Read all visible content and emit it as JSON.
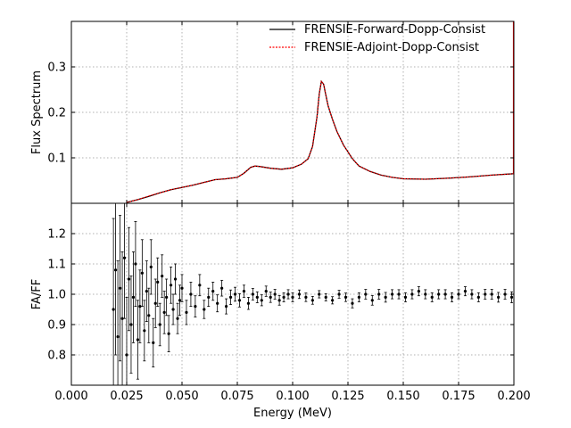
{
  "chart_data": [
    {
      "panel": "top",
      "type": "line",
      "title": "",
      "xlabel": "",
      "ylabel": "Flux Spectrum",
      "xlim": [
        0.0,
        0.2
      ],
      "ylim": [
        0.0,
        0.4
      ],
      "yticks": [
        0.1,
        0.2,
        0.3
      ],
      "ytick_labels": [
        "0.1",
        "0.2",
        "0.3"
      ],
      "grid": true,
      "legend_position": "top-right",
      "series": [
        {
          "name": "FRENSIE-Forward-Dopp-Consist",
          "color": "#000000",
          "style": "solid",
          "x": [
            0.025,
            0.03,
            0.035,
            0.04,
            0.045,
            0.05,
            0.055,
            0.06,
            0.065,
            0.07,
            0.075,
            0.078,
            0.081,
            0.083,
            0.085,
            0.09,
            0.095,
            0.1,
            0.104,
            0.107,
            0.109,
            0.111,
            0.112,
            0.113,
            0.114,
            0.115,
            0.116,
            0.118,
            0.12,
            0.123,
            0.127,
            0.13,
            0.135,
            0.14,
            0.145,
            0.15,
            0.16,
            0.17,
            0.18,
            0.19,
            0.2
          ],
          "y": [
            0.002,
            0.008,
            0.015,
            0.023,
            0.03,
            0.035,
            0.04,
            0.046,
            0.052,
            0.054,
            0.057,
            0.066,
            0.079,
            0.082,
            0.081,
            0.077,
            0.075,
            0.078,
            0.086,
            0.098,
            0.125,
            0.19,
            0.24,
            0.268,
            0.262,
            0.238,
            0.215,
            0.185,
            0.158,
            0.128,
            0.098,
            0.082,
            0.07,
            0.062,
            0.057,
            0.054,
            0.053,
            0.055,
            0.058,
            0.062,
            0.065
          ]
        },
        {
          "name": "FRENSIE-Adjoint-Dopp-Consist",
          "color": "#ff0000",
          "style": "dotted",
          "x": [
            0.025,
            0.03,
            0.035,
            0.04,
            0.045,
            0.05,
            0.055,
            0.06,
            0.065,
            0.07,
            0.075,
            0.078,
            0.081,
            0.083,
            0.085,
            0.09,
            0.095,
            0.1,
            0.104,
            0.107,
            0.109,
            0.111,
            0.112,
            0.113,
            0.114,
            0.115,
            0.116,
            0.118,
            0.12,
            0.123,
            0.127,
            0.13,
            0.135,
            0.14,
            0.145,
            0.15,
            0.16,
            0.17,
            0.18,
            0.19,
            0.2
          ],
          "y": [
            0.002,
            0.008,
            0.016,
            0.023,
            0.03,
            0.035,
            0.04,
            0.046,
            0.052,
            0.054,
            0.057,
            0.066,
            0.079,
            0.082,
            0.081,
            0.077,
            0.075,
            0.078,
            0.086,
            0.098,
            0.125,
            0.19,
            0.24,
            0.268,
            0.262,
            0.238,
            0.215,
            0.185,
            0.158,
            0.128,
            0.098,
            0.082,
            0.07,
            0.062,
            0.057,
            0.054,
            0.053,
            0.055,
            0.058,
            0.062,
            0.065
          ]
        }
      ]
    },
    {
      "panel": "bottom",
      "type": "scatter",
      "title": "",
      "xlabel": "Energy (MeV)",
      "ylabel": "FA/FF",
      "xlim": [
        0.0,
        0.2
      ],
      "ylim": [
        0.7,
        1.3
      ],
      "xticks": [
        0.0,
        0.025,
        0.05,
        0.075,
        0.1,
        0.125,
        0.15,
        0.175,
        0.2
      ],
      "xtick_labels": [
        "0.000",
        "0.025",
        "0.050",
        "0.075",
        "0.100",
        "0.125",
        "0.150",
        "0.175",
        "0.200"
      ],
      "yticks": [
        0.8,
        0.9,
        1.0,
        1.1,
        1.2
      ],
      "ytick_labels": [
        "0.8",
        "0.9",
        "1.0",
        "1.1",
        "1.2"
      ],
      "grid": true,
      "series": [
        {
          "name": "",
          "color": "#000000",
          "error_bars": true,
          "x": [
            0.019,
            0.02,
            0.021,
            0.022,
            0.023,
            0.024,
            0.025,
            0.026,
            0.027,
            0.028,
            0.029,
            0.03,
            0.031,
            0.032,
            0.033,
            0.034,
            0.035,
            0.036,
            0.037,
            0.038,
            0.039,
            0.04,
            0.041,
            0.042,
            0.043,
            0.044,
            0.045,
            0.046,
            0.047,
            0.048,
            0.049,
            0.05,
            0.052,
            0.054,
            0.056,
            0.058,
            0.06,
            0.062,
            0.064,
            0.066,
            0.068,
            0.07,
            0.072,
            0.074,
            0.076,
            0.078,
            0.08,
            0.082,
            0.084,
            0.086,
            0.088,
            0.09,
            0.092,
            0.094,
            0.096,
            0.098,
            0.1,
            0.103,
            0.106,
            0.109,
            0.112,
            0.115,
            0.118,
            0.121,
            0.124,
            0.127,
            0.13,
            0.133,
            0.136,
            0.139,
            0.142,
            0.145,
            0.148,
            0.151,
            0.154,
            0.157,
            0.16,
            0.163,
            0.166,
            0.169,
            0.172,
            0.175,
            0.178,
            0.181,
            0.184,
            0.187,
            0.19,
            0.193,
            0.196,
            0.199
          ],
          "y": [
            0.95,
            1.08,
            0.86,
            1.02,
            0.92,
            1.12,
            0.8,
            1.05,
            0.9,
            0.99,
            1.1,
            0.85,
            0.96,
            1.07,
            0.88,
            1.01,
            0.93,
            1.09,
            0.84,
            0.97,
            1.04,
            0.9,
            1.06,
            0.94,
            0.99,
            0.87,
            1.03,
            0.95,
            1.05,
            0.92,
            0.98,
            1.02,
            0.94,
            1.0,
            0.96,
            1.03,
            0.95,
            0.99,
            1.01,
            0.97,
            1.02,
            0.96,
            0.99,
            1.0,
            0.98,
            1.01,
            0.97,
            1.0,
            0.99,
            0.98,
            1.01,
            0.99,
            1.0,
            0.98,
            0.99,
            1.0,
            0.99,
            1.0,
            0.99,
            0.98,
            1.0,
            0.99,
            0.98,
            1.0,
            0.99,
            0.97,
            0.99,
            1.0,
            0.98,
            1.0,
            0.99,
            1.0,
            1.0,
            0.99,
            1.0,
            1.01,
            1.0,
            0.99,
            1.0,
            1.0,
            0.99,
            1.0,
            1.01,
            1.0,
            0.99,
            1.0,
            1.0,
            0.99,
            1.0,
            0.99
          ],
          "yerr": [
            0.3,
            0.28,
            0.25,
            0.24,
            0.22,
            0.2,
            0.19,
            0.17,
            0.16,
            0.15,
            0.14,
            0.13,
            0.12,
            0.11,
            0.1,
            0.1,
            0.09,
            0.09,
            0.08,
            0.08,
            0.08,
            0.07,
            0.07,
            0.07,
            0.06,
            0.06,
            0.06,
            0.05,
            0.05,
            0.05,
            0.05,
            0.045,
            0.04,
            0.04,
            0.035,
            0.035,
            0.03,
            0.03,
            0.03,
            0.028,
            0.026,
            0.025,
            0.024,
            0.023,
            0.022,
            0.02,
            0.02,
            0.019,
            0.018,
            0.018,
            0.017,
            0.017,
            0.016,
            0.016,
            0.015,
            0.015,
            0.015,
            0.014,
            0.014,
            0.013,
            0.012,
            0.012,
            0.012,
            0.013,
            0.014,
            0.015,
            0.015,
            0.016,
            0.016,
            0.016,
            0.016,
            0.015,
            0.015,
            0.015,
            0.015,
            0.015,
            0.015,
            0.015,
            0.015,
            0.015,
            0.015,
            0.015,
            0.015,
            0.015,
            0.015,
            0.016,
            0.016,
            0.016,
            0.016,
            0.018
          ]
        }
      ]
    }
  ]
}
